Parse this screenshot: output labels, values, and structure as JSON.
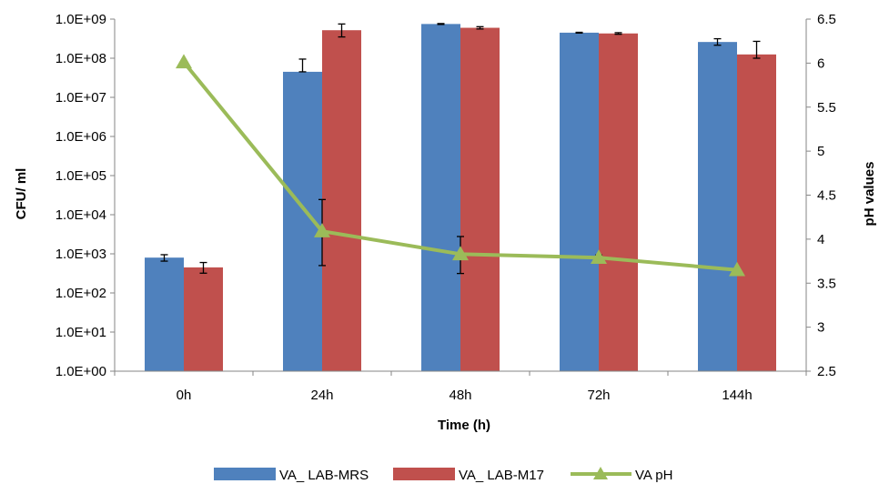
{
  "chart_data": {
    "type": "bar",
    "categories": [
      "0h",
      "24h",
      "48h",
      "72h",
      "144h"
    ],
    "xlabel": "Time (h)",
    "ylabel": "CFU/ ml",
    "y2label": "pH values",
    "yscale": "log",
    "ylim": [
      1,
      1000000000
    ],
    "ytick_labels": [
      "1.0E+00",
      "1.0E+01",
      "1.0E+02",
      "1.0E+03",
      "1.0E+04",
      "1.0E+05",
      "1.0E+06",
      "1.0E+07",
      "1.0E+08",
      "1.0E+09"
    ],
    "y2lim": [
      2.5,
      6.5
    ],
    "y2tick_labels": [
      "2.5",
      "3",
      "3.5",
      "4",
      "4.5",
      "5",
      "5.5",
      "6",
      "6.5"
    ],
    "grid": false,
    "legend_position": "bottom",
    "series": [
      {
        "name": "VA_ LAB-MRS",
        "kind": "bar",
        "axis": "left",
        "color": "#4F81BD",
        "values": [
          800,
          45000000,
          750000000,
          450000000,
          260000000
        ],
        "error_low": [
          650,
          45000000,
          730000000,
          440000000,
          215000000
        ],
        "error_high": [
          950,
          95000000,
          770000000,
          460000000,
          315000000
        ]
      },
      {
        "name": "VA_ LAB-M17",
        "kind": "bar",
        "axis": "left",
        "color": "#C0504D",
        "values": [
          450,
          520000000,
          600000000,
          430000000,
          125000000
        ],
        "error_low": [
          320,
          350000000,
          560000000,
          410000000,
          100000000
        ],
        "error_high": [
          600,
          750000000,
          640000000,
          450000000,
          270000000
        ]
      },
      {
        "name": "VA pH",
        "kind": "line",
        "axis": "right",
        "color": "#9BBB59",
        "marker": "triangle",
        "values": [
          6.01,
          4.09,
          3.83,
          3.79,
          3.65
        ],
        "error_low": [
          6.01,
          3.7,
          3.61,
          3.76,
          3.65
        ],
        "error_high": [
          6.01,
          4.45,
          4.03,
          3.82,
          3.65
        ]
      }
    ]
  }
}
